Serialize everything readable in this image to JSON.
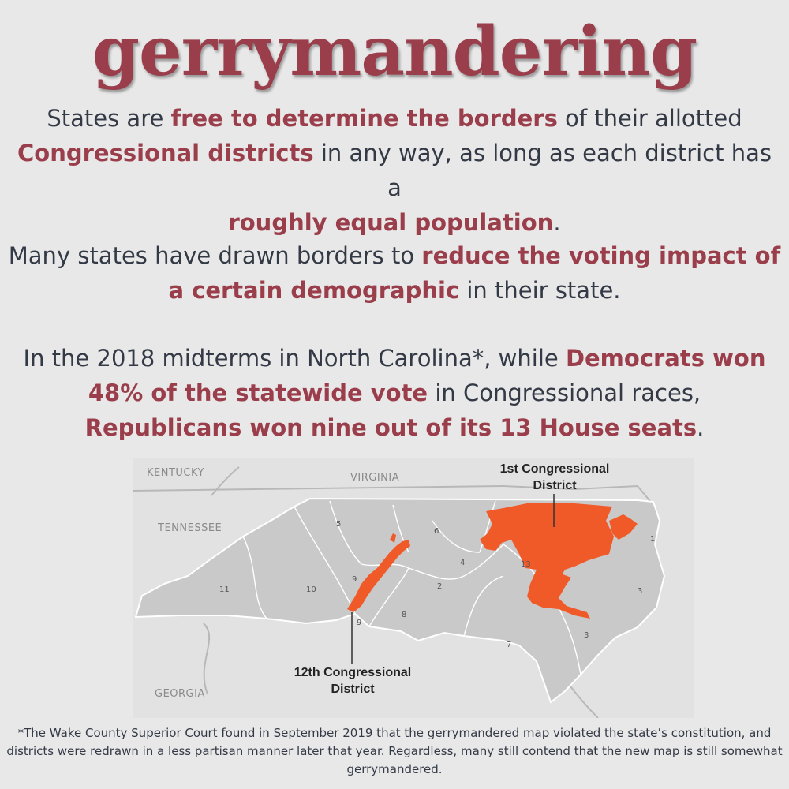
{
  "title": "gerrymandering",
  "paragraph1": {
    "s1": "States are ",
    "h1": "free to determine the borders",
    "s2": " of their allotted ",
    "h2": "Congressional districts",
    "s3": " in any way, as long as each district has a ",
    "h3": "roughly equal population",
    "s4": "."
  },
  "paragraph2": {
    "s1": "Many states have drawn borders to ",
    "h1": "reduce the voting impact of a certain demographic",
    "s2": " in their state."
  },
  "paragraph3": {
    "s1": "In the 2018 midterms in North Carolina*,  while ",
    "h1": "Democrats won 48% of the statewide vote",
    "s2": " in Congressional races, ",
    "h2": "Republicans won nine out of its 13 House seats",
    "s3": "."
  },
  "map": {
    "state_labels": {
      "kentucky": "KENTUCKY",
      "virginia": "VIRGINIA",
      "tennessee": "TENNESSEE",
      "georgia": "GEORGIA"
    },
    "district_numbers": [
      "11",
      "10",
      "5",
      "6",
      "4",
      "13",
      "1",
      "2",
      "9",
      "9",
      "8",
      "7",
      "3",
      "3"
    ],
    "callout_1": {
      "line1": "1st Congressional",
      "line2": "District"
    },
    "callout_12": {
      "line1": "12th Congressional",
      "line2": "District"
    },
    "colors": {
      "state_fill": "#c9c9c9",
      "highlight": "#f05a28",
      "background": "#e2e2e2"
    }
  },
  "footnote": "*The Wake County Superior Court found in September 2019 that the gerrymandered map violated the state’s constitution, and districts were redrawn in a less partisan manner later that year. Regardless, many still contend that the new map is still somewhat gerrymandered.",
  "colors": {
    "accent": "#9b3e4b",
    "text": "#333a46",
    "background": "#e8e8e8"
  }
}
